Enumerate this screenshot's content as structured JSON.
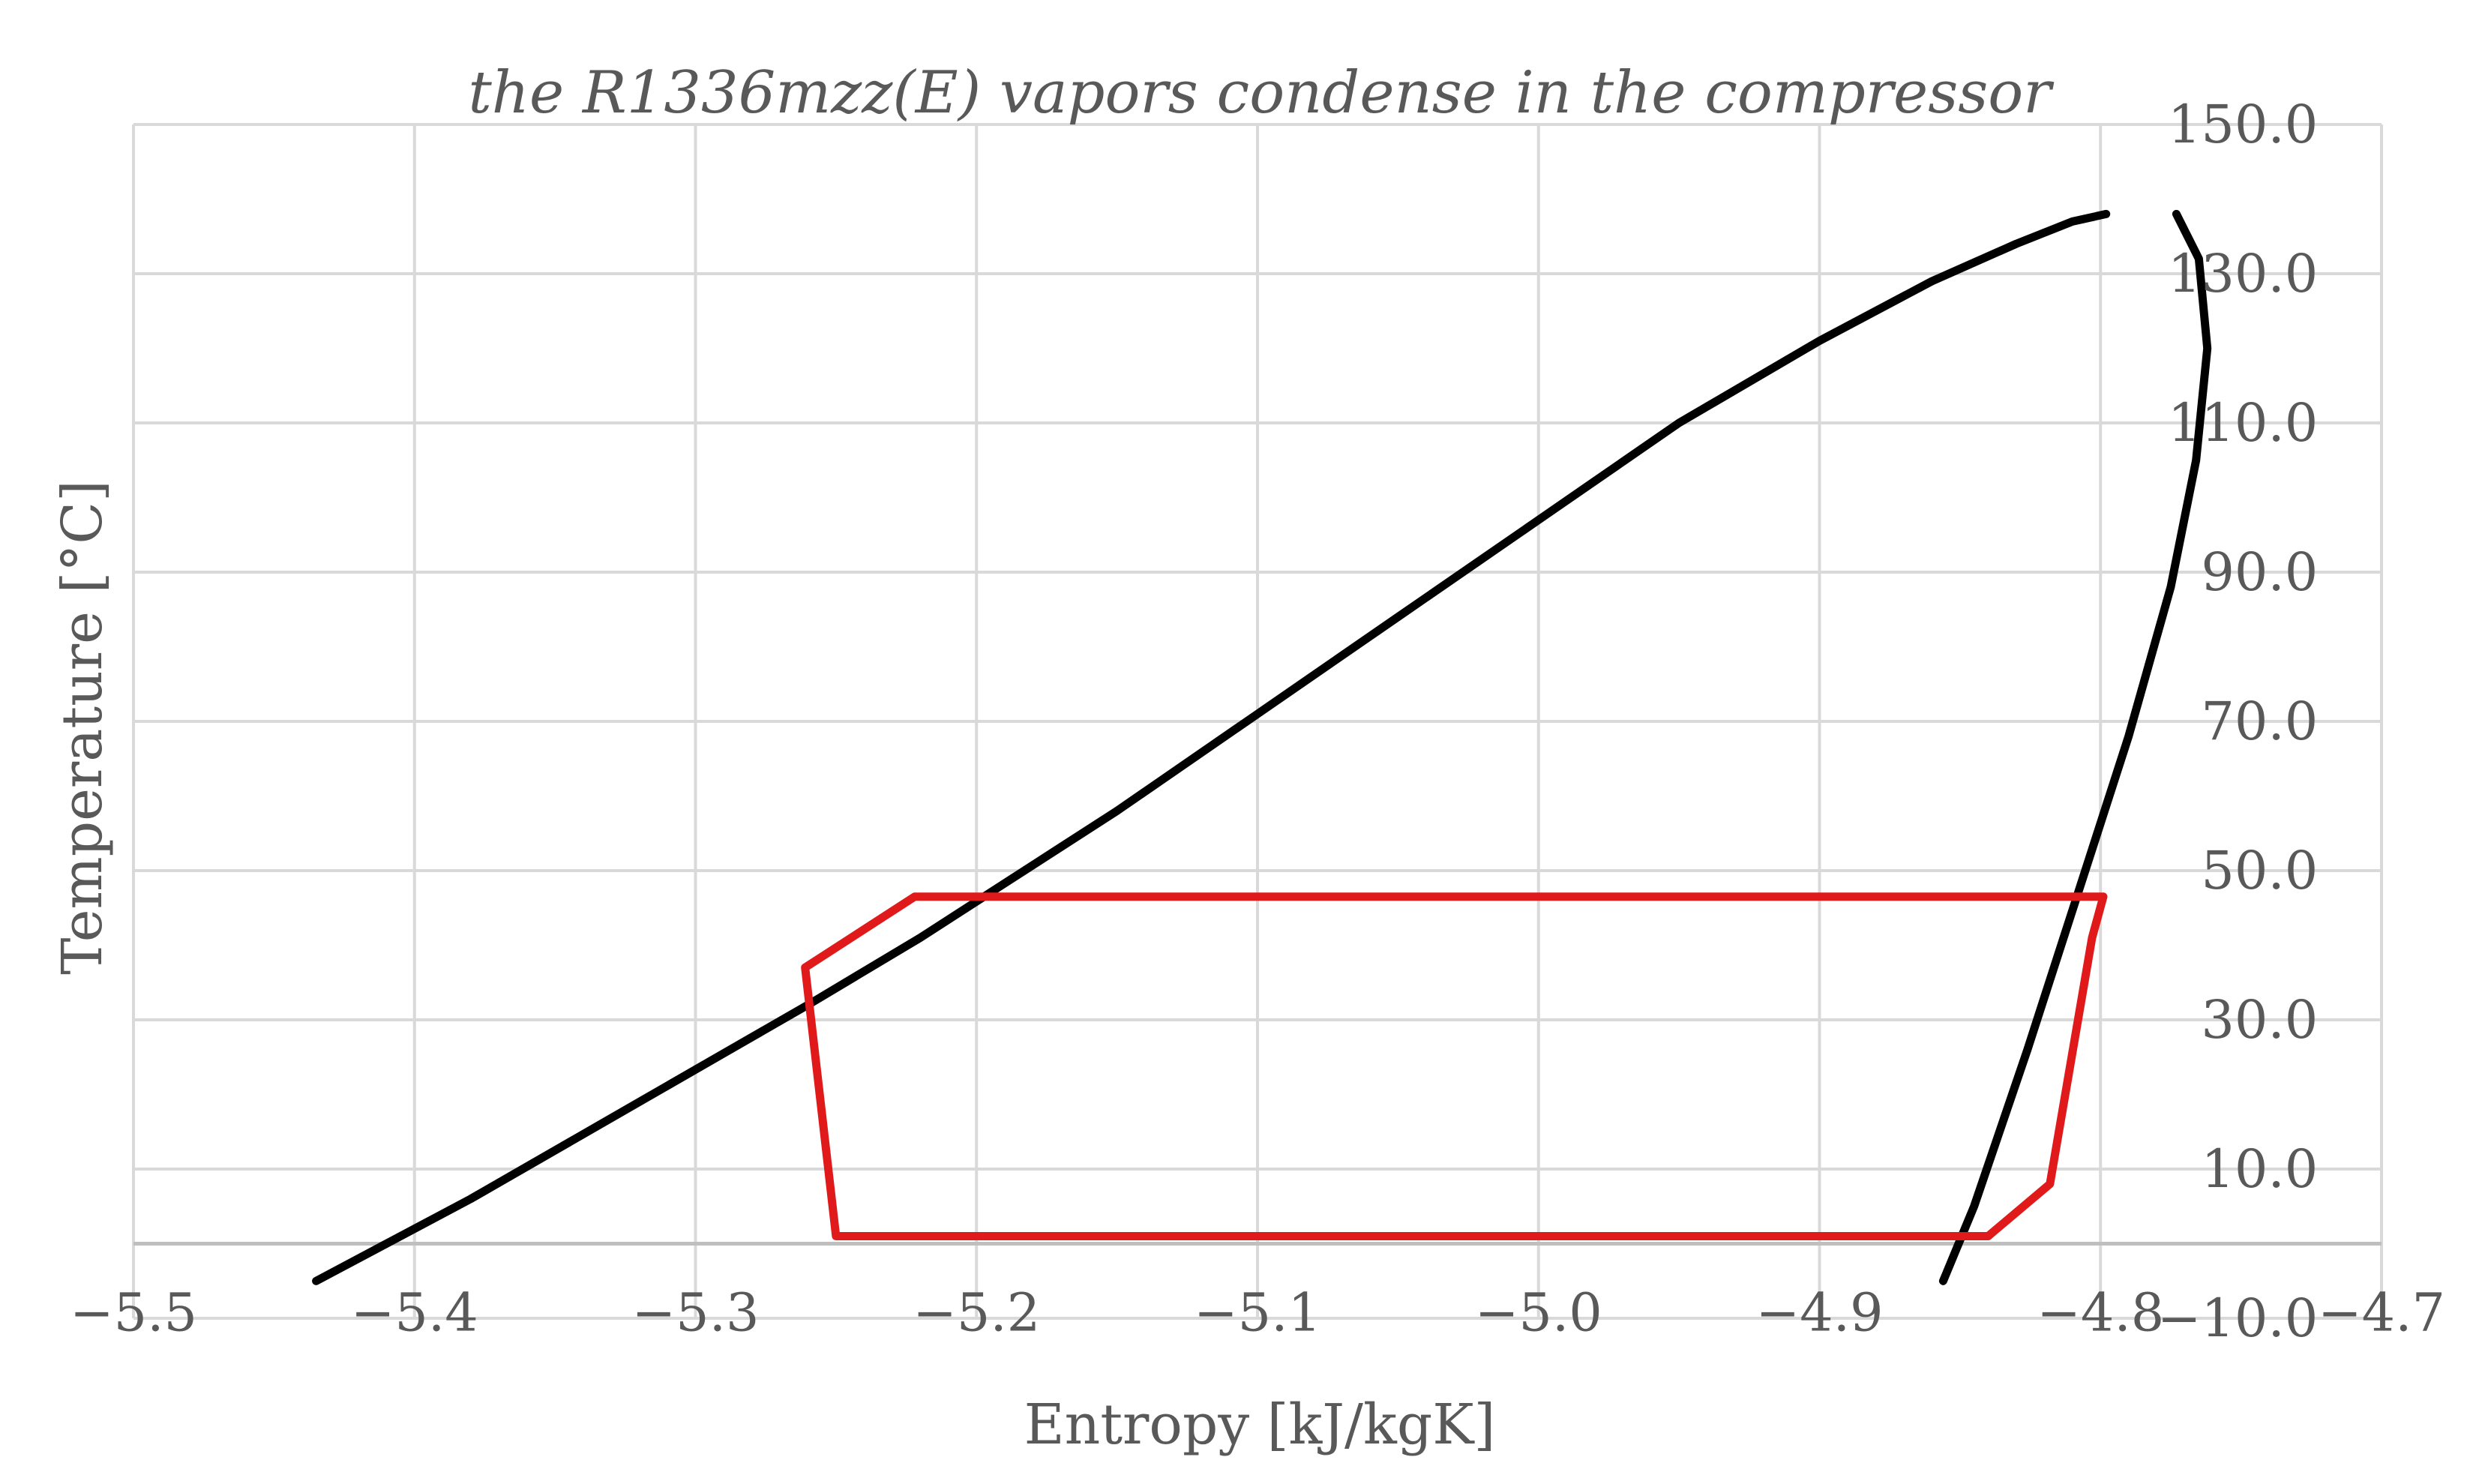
{
  "chart_data": {
    "type": "line",
    "title": "the R1336mzz(E) vapors condense in the compressor",
    "xlabel": "Entropy [kJ/kgK]",
    "ylabel": "Temperature [°C]",
    "xlim": [
      -5.5,
      -4.7
    ],
    "ylim": [
      -10.0,
      150.0
    ],
    "x_ticks": [
      -5.5,
      -5.4,
      -5.3,
      -5.2,
      -5.1,
      -5.0,
      -4.9,
      -4.8,
      -4.7
    ],
    "x_tick_labels": [
      "−5.5",
      "−5.4",
      "−5.3",
      "−5.2",
      "−5.1",
      "−5.0",
      "−4.9",
      "−4.8",
      "−4.7"
    ],
    "y_ticks": [
      -10,
      10,
      30,
      50,
      70,
      90,
      110,
      130,
      150
    ],
    "y_tick_labels": [
      "−10.0",
      "10.0",
      "30.0",
      "50.0",
      "70.0",
      "90.0",
      "110.0",
      "130.0",
      "150.0"
    ],
    "grid": true,
    "x_axis_at_y": 0,
    "y_axis_labels_at_x": -4.8,
    "series": [
      {
        "color": "#000000",
        "x": [
          -5.435,
          -5.38,
          -5.32,
          -5.26,
          -5.22,
          -5.15,
          -5.1,
          -5.05,
          -5.0,
          -4.95,
          -4.9,
          -4.86,
          -4.83,
          -4.81,
          -4.798
        ],
        "y": [
          -5,
          6,
          19,
          32,
          41,
          58,
          71,
          84,
          97,
          110,
          121,
          129,
          134,
          137,
          138
        ]
      },
      {
        "color": "#000000",
        "x": [
          -4.773,
          -4.765,
          -4.762,
          -4.766,
          -4.775,
          -4.79,
          -4.808,
          -4.826,
          -4.845,
          -4.856
        ],
        "y": [
          138,
          132,
          120,
          105,
          88,
          68,
          47,
          26,
          5,
          -5
        ]
      },
      {
        "color": "#e01a1a",
        "x": [
          -5.222,
          -4.799,
          -4.803,
          -4.818,
          -4.84,
          -5.25,
          -5.261,
          -5.222
        ],
        "y": [
          46.5,
          46.5,
          41,
          8,
          1,
          1,
          37,
          46.5
        ]
      }
    ]
  }
}
